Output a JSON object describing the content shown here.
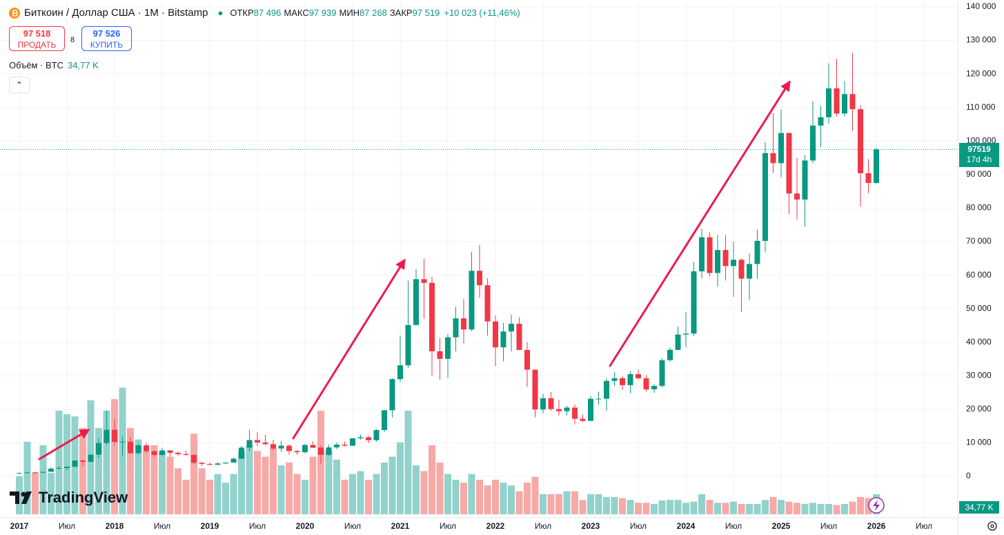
{
  "header": {
    "symbol": "Биткоин / Доллар США · 1M · Bitstamp",
    "ohlc": [
      {
        "key": "ОТКР",
        "value": "87 496"
      },
      {
        "key": "МАКС",
        "value": "97 939"
      },
      {
        "key": "МИН",
        "value": "87 268"
      },
      {
        "key": "ЗАКР",
        "value": "97 519"
      }
    ],
    "change": "+10 023 (+11,46%)",
    "sell_price": "97 518",
    "sell_label": "ПРОДАТЬ",
    "spread": "8",
    "buy_price": "97 526",
    "buy_label": "КУПИТЬ",
    "volume_title": "Объём · BTC",
    "volume_value": "34,77 K"
  },
  "watermark": "TradingView",
  "chart_data": {
    "type": "candlestick",
    "x": [
      "2017-01",
      "2017-02",
      "2017-03",
      "2017-04",
      "2017-05",
      "2017-06",
      "2017-07",
      "2017-08",
      "2017-09",
      "2017-10",
      "2017-11",
      "2017-12",
      "2018-01",
      "2018-02",
      "2018-03",
      "2018-04",
      "2018-05",
      "2018-06",
      "2018-07",
      "2018-08",
      "2018-09",
      "2018-10",
      "2018-11",
      "2018-12",
      "2019-01",
      "2019-02",
      "2019-03",
      "2019-04",
      "2019-05",
      "2019-06",
      "2019-07",
      "2019-08",
      "2019-09",
      "2019-10",
      "2019-11",
      "2019-12",
      "2020-01",
      "2020-02",
      "2020-03",
      "2020-04",
      "2020-05",
      "2020-06",
      "2020-07",
      "2020-08",
      "2020-09",
      "2020-10",
      "2020-11",
      "2020-12",
      "2021-01",
      "2021-02",
      "2021-03",
      "2021-04",
      "2021-05",
      "2021-06",
      "2021-07",
      "2021-08",
      "2021-09",
      "2021-10",
      "2021-11",
      "2021-12",
      "2022-01",
      "2022-02",
      "2022-03",
      "2022-04",
      "2022-05",
      "2022-06",
      "2022-07",
      "2022-08",
      "2022-09",
      "2022-10",
      "2022-11",
      "2022-12",
      "2023-01",
      "2023-02",
      "2023-03",
      "2023-04",
      "2023-05",
      "2023-06",
      "2023-07",
      "2023-08",
      "2023-09",
      "2023-10",
      "2023-11",
      "2023-12",
      "2024-01",
      "2024-02",
      "2024-03",
      "2024-04",
      "2024-05",
      "2024-06",
      "2024-07",
      "2024-08",
      "2024-09",
      "2024-10",
      "2024-11",
      "2024-12",
      "2025-01",
      "2025-02",
      "2025-03",
      "2025-04",
      "2025-05",
      "2025-06",
      "2025-07",
      "2025-08",
      "2025-09",
      "2025-10",
      "2025-11",
      "2025-12",
      "2026-01"
    ],
    "open": [
      963,
      965,
      1190,
      1080,
      1350,
      2300,
      2480,
      2870,
      4700,
      4340,
      6460,
      9950,
      13880,
      10270,
      10320,
      6920,
      9240,
      7490,
      6390,
      7730,
      7030,
      6630,
      6370,
      4040,
      3690,
      3440,
      3840,
      4100,
      5270,
      8560,
      10820,
      10090,
      9600,
      8300,
      9150,
      7550,
      7190,
      9350,
      8540,
      6420,
      8630,
      9460,
      9140,
      11340,
      11650,
      10780,
      13800,
      19700,
      28990,
      33110,
      45140,
      58800,
      57700,
      37300,
      35040,
      41460,
      47100,
      43800,
      61300,
      57000,
      46200,
      38480,
      43200,
      45500,
      37700,
      31800,
      19940,
      23300,
      20050,
      19420,
      20500,
      17170,
      16540,
      23130,
      23150,
      28470,
      29270,
      27200,
      30470,
      29230,
      25940,
      26970,
      34650,
      37720,
      42280,
      42580,
      61130,
      71300,
      60640,
      67500,
      62700,
      64600,
      58970,
      63330,
      70220,
      96400,
      93400,
      102400,
      84350,
      82550,
      94200,
      104600,
      107100,
      115700,
      108200,
      114000,
      109500,
      90400,
      87496
    ],
    "high": [
      1190,
      1200,
      1350,
      1350,
      2790,
      3000,
      2930,
      4750,
      4980,
      6470,
      11400,
      19660,
      17180,
      11800,
      11700,
      9760,
      9990,
      7770,
      8500,
      7760,
      7400,
      7680,
      6570,
      4240,
      4110,
      4200,
      4140,
      5620,
      9090,
      13880,
      13200,
      12330,
      10900,
      10540,
      9520,
      7750,
      9590,
      10500,
      9180,
      9460,
      10080,
      10400,
      11440,
      12470,
      12050,
      14100,
      19860,
      29300,
      41950,
      58350,
      61790,
      64900,
      59500,
      41300,
      42400,
      50500,
      52900,
      67000,
      69000,
      59100,
      47990,
      45800,
      48200,
      47400,
      40000,
      31900,
      24650,
      25200,
      22800,
      20990,
      21450,
      18400,
      23960,
      25250,
      29200,
      31000,
      29840,
      31400,
      31800,
      30200,
      27500,
      35200,
      38400,
      44700,
      48970,
      64000,
      73800,
      72800,
      71950,
      71950,
      70000,
      65000,
      66500,
      73600,
      99600,
      108300,
      109500,
      102500,
      95000,
      95800,
      111900,
      110500,
      123200,
      124450,
      117900,
      126200,
      110600,
      94600,
      97939
    ],
    "low": [
      750,
      920,
      890,
      1060,
      1350,
      2100,
      1840,
      2670,
      2980,
      4110,
      5500,
      9420,
      9400,
      5880,
      6600,
      6430,
      7030,
      5780,
      6070,
      5880,
      6100,
      6190,
      3650,
      3120,
      3350,
      3380,
      3700,
      4080,
      5180,
      7450,
      9070,
      9320,
      7720,
      7300,
      6520,
      6430,
      6870,
      8450,
      3850,
      6150,
      8100,
      8900,
      8990,
      10960,
      9880,
      10370,
      13200,
      17600,
      28130,
      32400,
      45000,
      47000,
      30000,
      28800,
      29300,
      37300,
      39600,
      43300,
      53250,
      42000,
      32900,
      34300,
      37200,
      37600,
      26700,
      17600,
      18800,
      19600,
      18150,
      18200,
      15500,
      16270,
      16500,
      21350,
      19570,
      26950,
      25800,
      24750,
      28900,
      25300,
      24900,
      26560,
      34100,
      37600,
      38500,
      41880,
      59000,
      59600,
      56550,
      58400,
      53500,
      49000,
      52550,
      58900,
      66800,
      90500,
      89200,
      78200,
      76600,
      74400,
      93400,
      98200,
      105200,
      107300,
      107300,
      103000,
      80500,
      84400,
      87268
    ],
    "close": [
      965,
      1190,
      1080,
      1350,
      2300,
      2480,
      2870,
      4700,
      4340,
      6460,
      9950,
      13880,
      10270,
      10320,
      6920,
      9240,
      7490,
      6390,
      7730,
      7030,
      6630,
      6370,
      4040,
      3690,
      3440,
      3840,
      4100,
      5270,
      8560,
      10820,
      10090,
      9600,
      8300,
      9150,
      7550,
      7190,
      9350,
      8540,
      6420,
      8630,
      9460,
      9140,
      11340,
      11650,
      10780,
      13800,
      19700,
      28990,
      33110,
      45140,
      58800,
      57700,
      37300,
      35040,
      41460,
      47100,
      43800,
      61300,
      57000,
      46200,
      38480,
      43200,
      45500,
      37700,
      31800,
      19940,
      23300,
      20050,
      19420,
      20500,
      17170,
      16540,
      23130,
      23150,
      28470,
      29270,
      27200,
      30470,
      29230,
      25940,
      26970,
      34650,
      37720,
      42280,
      42580,
      61130,
      71300,
      60640,
      67500,
      62700,
      64600,
      58970,
      63330,
      70220,
      96400,
      93400,
      102400,
      84350,
      82550,
      94200,
      104600,
      107100,
      115700,
      108200,
      114000,
      109500,
      90400,
      87496,
      97519
    ],
    "volume": [
      66,
      126,
      72,
      120,
      72,
      180,
      174,
      170,
      150,
      198,
      150,
      180,
      200,
      220,
      150,
      130,
      110,
      120,
      108,
      100,
      80,
      60,
      140,
      80,
      60,
      70,
      55,
      70,
      110,
      120,
      110,
      100,
      115,
      85,
      90,
      70,
      60,
      100,
      180,
      110,
      95,
      60,
      70,
      75,
      60,
      70,
      90,
      100,
      125,
      180,
      85,
      75,
      120,
      90,
      70,
      60,
      55,
      70,
      60,
      50,
      60,
      55,
      50,
      40,
      55,
      65,
      35,
      35,
      35,
      40,
      40,
      25,
      35,
      35,
      30,
      30,
      28,
      25,
      20,
      20,
      18,
      24,
      25,
      25,
      20,
      22,
      35,
      25,
      20,
      20,
      22,
      18,
      18,
      18,
      25,
      30,
      25,
      22,
      20,
      18,
      20,
      18,
      18,
      16,
      18,
      22,
      30,
      28,
      34.77
    ],
    "volume_label": "34,77 K",
    "countdown": "17d 4h",
    "up_color": "#089981",
    "down_color": "#f23645",
    "volume_up_color": "#92d2cc",
    "volume_down_color": "#f7a9a7",
    "ylim": [
      -12350,
      142060
    ],
    "yticks": [
      0,
      {
        "value": 10000,
        "label": "10 000"
      },
      {
        "value": 20000,
        "label": "20 000"
      },
      {
        "value": 30000,
        "label": "30 000"
      },
      {
        "value": 40000,
        "label": "40 000"
      },
      {
        "value": 50000,
        "label": "50 000"
      },
      {
        "value": 60000,
        "label": "60 000"
      },
      {
        "value": 70000,
        "label": "70 000"
      },
      {
        "value": 80000,
        "label": "80 000"
      },
      {
        "value": 90000,
        "label": "90 000"
      },
      {
        "value": 100000,
        "label": "100 000"
      },
      {
        "value": 110000,
        "label": "110 000"
      },
      {
        "value": 120000,
        "label": "120 000"
      },
      {
        "value": 130000,
        "label": "130 000"
      },
      {
        "value": 140000,
        "label": "140 000"
      }
    ],
    "xticks": [
      {
        "value": "2017-01",
        "label": "2017"
      },
      {
        "value": "2017-07",
        "label": "Июл"
      },
      {
        "value": "2018-01",
        "label": "2018"
      },
      {
        "value": "2018-07",
        "label": "Июл"
      },
      {
        "value": "2019-01",
        "label": "2019"
      },
      {
        "value": "2019-07",
        "label": "Июл"
      },
      {
        "value": "2020-01",
        "label": "2020"
      },
      {
        "value": "2020-07",
        "label": "Июл"
      },
      {
        "value": "2021-01",
        "label": "2021"
      },
      {
        "value": "2021-07",
        "label": "Июл"
      },
      {
        "value": "2022-01",
        "label": "2022"
      },
      {
        "value": "2022-07",
        "label": "Июл"
      },
      {
        "value": "2023-01",
        "label": "2023"
      },
      {
        "value": "2023-07",
        "label": "Июл"
      },
      {
        "value": "2024-01",
        "label": "2024"
      },
      {
        "value": "2024-07",
        "label": "Июл"
      },
      {
        "value": "2025-01",
        "label": "2025"
      },
      {
        "value": "2025-07",
        "label": "Июл"
      },
      {
        "value": "2026-01",
        "label": "2026"
      },
      {
        "value": "2026-07",
        "label": "Июл"
      }
    ],
    "grid": true
  }
}
